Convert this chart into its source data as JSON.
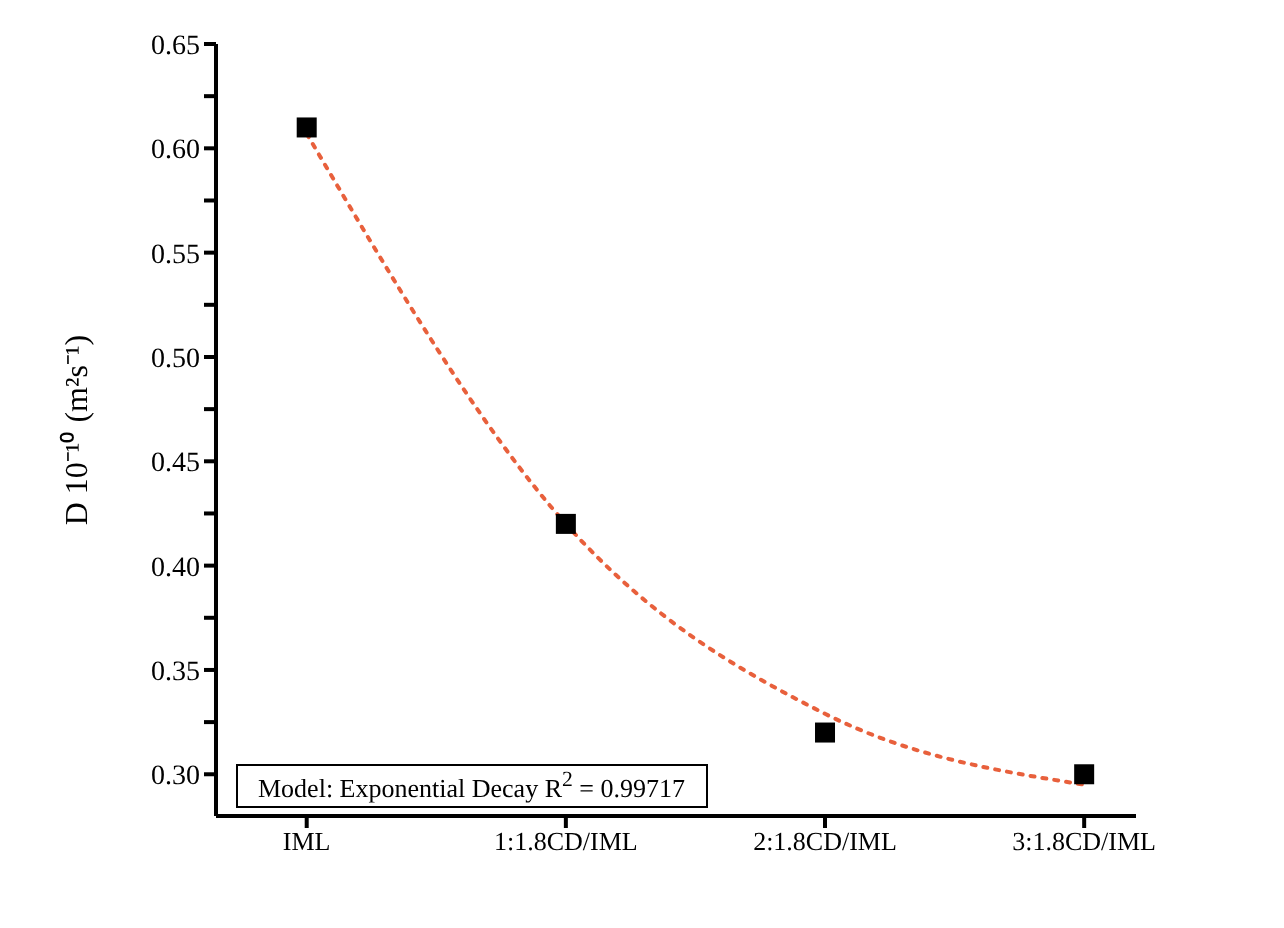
{
  "chart_data": {
    "type": "scatter",
    "ylabel": "D 10⁻¹⁰ (m²s⁻¹)",
    "categories": [
      "IML",
      "1:1.8CD/IML",
      "2:1.8CD/IML",
      "3:1.8CD/IML"
    ],
    "series": [
      {
        "color": "#000000",
        "marker": "square",
        "values": [
          0.61,
          0.42,
          0.32,
          0.3
        ]
      },
      {
        "type": "line",
        "color": "#e8603c",
        "marker": "none",
        "line_style": "dotted",
        "values": [
          0.607,
          0.42,
          0.329,
          0.295
        ]
      }
    ],
    "ylim": [
      0.28,
      0.65
    ],
    "yticks": [
      {
        "value": 0.3,
        "label": "0.30"
      },
      {
        "value": 0.325,
        "label": null
      },
      0.35,
      {
        "value": 0.375,
        "label": null
      },
      {
        "value": 0.4,
        "label": "0.40"
      },
      {
        "value": 0.425,
        "label": null
      },
      0.45,
      {
        "value": 0.475,
        "label": null
      },
      {
        "value": 0.5,
        "label": "0.50"
      },
      {
        "value": 0.525,
        "label": null
      },
      0.55,
      {
        "value": 0.575,
        "label": null
      },
      {
        "value": 0.6,
        "label": "0.60"
      },
      {
        "value": 0.625,
        "label": null
      },
      0.65
    ],
    "annotations": [
      "Model: Exponential Decay R$^{2}$ = 0.99717"
    ],
    "grid": false,
    "legend": false
  }
}
